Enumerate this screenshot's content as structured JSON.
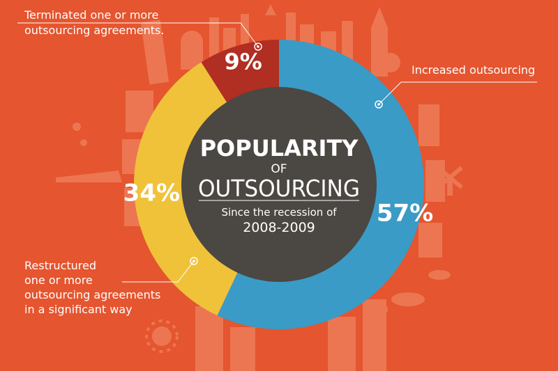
{
  "chart_data": {
    "type": "pie",
    "title": "POPULARITY",
    "title_of": "OF",
    "title_main": "OUTSOURCING",
    "subtitle_line1": "Since the recession of",
    "subtitle_line2": "2008-2009",
    "slices": [
      {
        "label_lines": [
          "Increased outsourcing"
        ],
        "value": 57,
        "value_label": "57%",
        "color": "#3a9bc6"
      },
      {
        "label_lines": [
          "Restructured",
          "one or more",
          "outsourcing agreements",
          "in a significant way"
        ],
        "value": 34,
        "value_label": "34%",
        "color": "#f0c23a"
      },
      {
        "label_lines": [
          "Terminated one or more",
          "outsourcing agreements."
        ],
        "value": 9,
        "value_label": "9%",
        "color": "#b02e22"
      }
    ]
  },
  "colors": {
    "background": "#e5552f",
    "center": "#4b4742",
    "silhouette": "#ec7b57",
    "text_light": "#ffffff"
  }
}
